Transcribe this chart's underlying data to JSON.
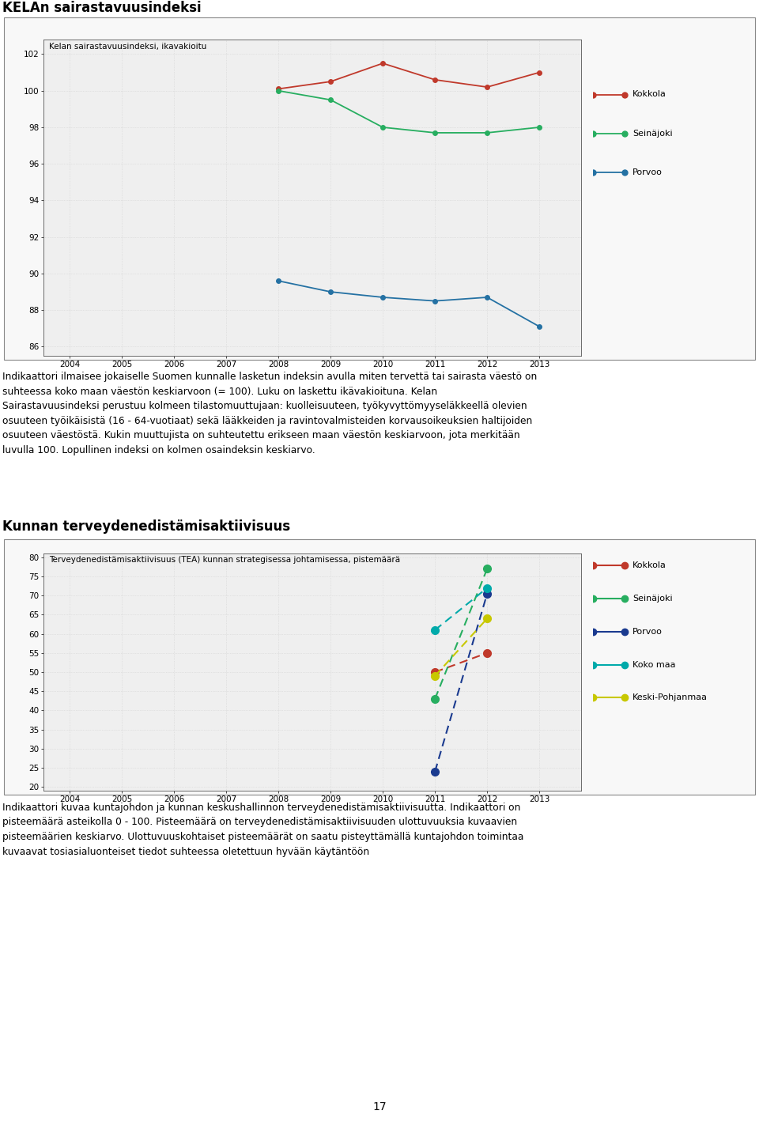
{
  "chart1": {
    "title": "Kelan sairastavuusindeksi, ikavakioitu",
    "xlim": [
      2003.5,
      2013.8
    ],
    "ylim": [
      85.5,
      102.8
    ],
    "yticks": [
      86,
      88,
      90,
      92,
      94,
      96,
      98,
      100,
      102
    ],
    "xticks": [
      2004,
      2005,
      2006,
      2007,
      2008,
      2009,
      2010,
      2011,
      2012,
      2013
    ],
    "series_order": [
      "Kokkola",
      "Seinäjoki",
      "Porvoo"
    ],
    "series": {
      "Kokkola": {
        "color": "#c0392b",
        "x": [
          2008,
          2009,
          2010,
          2011,
          2012,
          2013
        ],
        "y": [
          100.1,
          100.5,
          101.5,
          100.6,
          100.2,
          101.0
        ]
      },
      "Seinäjoki": {
        "color": "#27ae60",
        "x": [
          2008,
          2009,
          2010,
          2011,
          2012,
          2013
        ],
        "y": [
          100.0,
          99.5,
          98.0,
          97.7,
          97.7,
          98.0
        ]
      },
      "Porvoo": {
        "color": "#2471a3",
        "x": [
          2008,
          2009,
          2010,
          2011,
          2012,
          2013
        ],
        "y": [
          89.6,
          89.0,
          88.7,
          88.5,
          88.7,
          87.1
        ]
      }
    }
  },
  "chart2": {
    "title": "Terveydenedistämisaktiivisuus (TEA) kunnan strategisessa johtamisessa, pistemäärä",
    "xlim": [
      2003.5,
      2013.8
    ],
    "ylim": [
      19,
      81
    ],
    "yticks": [
      20,
      25,
      30,
      35,
      40,
      45,
      50,
      55,
      60,
      65,
      70,
      75,
      80
    ],
    "xticks": [
      2004,
      2005,
      2006,
      2007,
      2008,
      2009,
      2010,
      2011,
      2012,
      2013
    ],
    "series_order": [
      "Kokkola",
      "Seinäjoki",
      "Porvoo",
      "Koko maa",
      "Keski-Pohjanmaa"
    ],
    "series": {
      "Kokkola": {
        "color": "#c0392b",
        "x": [
          2011,
          2012
        ],
        "y": [
          50.0,
          55.0
        ]
      },
      "Seinäjoki": {
        "color": "#27ae60",
        "x": [
          2011,
          2012
        ],
        "y": [
          43.0,
          77.0
        ]
      },
      "Porvoo": {
        "color": "#1a3a8f",
        "x": [
          2011,
          2012
        ],
        "y": [
          24.0,
          70.5
        ]
      },
      "Koko maa": {
        "color": "#00aaaa",
        "x": [
          2011,
          2012
        ],
        "y": [
          61.0,
          72.0
        ]
      },
      "Keski-Pohjanmaa": {
        "color": "#c8c800",
        "x": [
          2011,
          2012
        ],
        "y": [
          49.0,
          64.0
        ]
      }
    }
  },
  "text_block1": "Indikaattori ilmaisee jokaiselle Suomen kunnalle lasketun indeksin avulla miten tervettä tai sairasta väestö on\nsuhteessa koko maan väestön keskiarvoon (= 100). Luku on laskettu ikävakioituna. Kelan\nSairastavuusindeksi perustuu kolmeen tilastomuuttujaan: kuolleisuuteen, työkyvyttömyyseläkkeellä olevien\nosuuteen työikäisistä (16 - 64-vuotiaat) sekä lääkkeiden ja ravintovalmisteiden korvausoikeuksien haltijoiden\nosuuteen väestöstä. Kukin muuttujista on suhteutettu erikseen maan väestön keskiarvoon, jota merkitään\nluvulla 100. Lopullinen indeksi on kolmen osaindeksin keskiarvo.",
  "text_block2": "Indikaattori kuvaa kuntajohdon ja kunnan keskushallinnon terveydenedistämisaktiivisuutta. Indikaattori on\npisteemäärä asteikolla 0 - 100. Pisteemäärä on terveydenedistämisaktiivisuuden ulottuvuuksia kuvaavien\npisteemäärien keskiarvo. Ulottuvuuskohtaiset pisteemäärät on saatu pisteyttämällä kuntajohdon toimintaa\nkuvaavat tosiasialuonteiset tiedot suhteessa oletettuun hyvään käytäntöön",
  "page_number": "17",
  "title1": "KELAn sairastavuusindeksi",
  "title2": "Kunnan terveydenedistämisaktiivisuus",
  "chart_bg": "#efefef"
}
